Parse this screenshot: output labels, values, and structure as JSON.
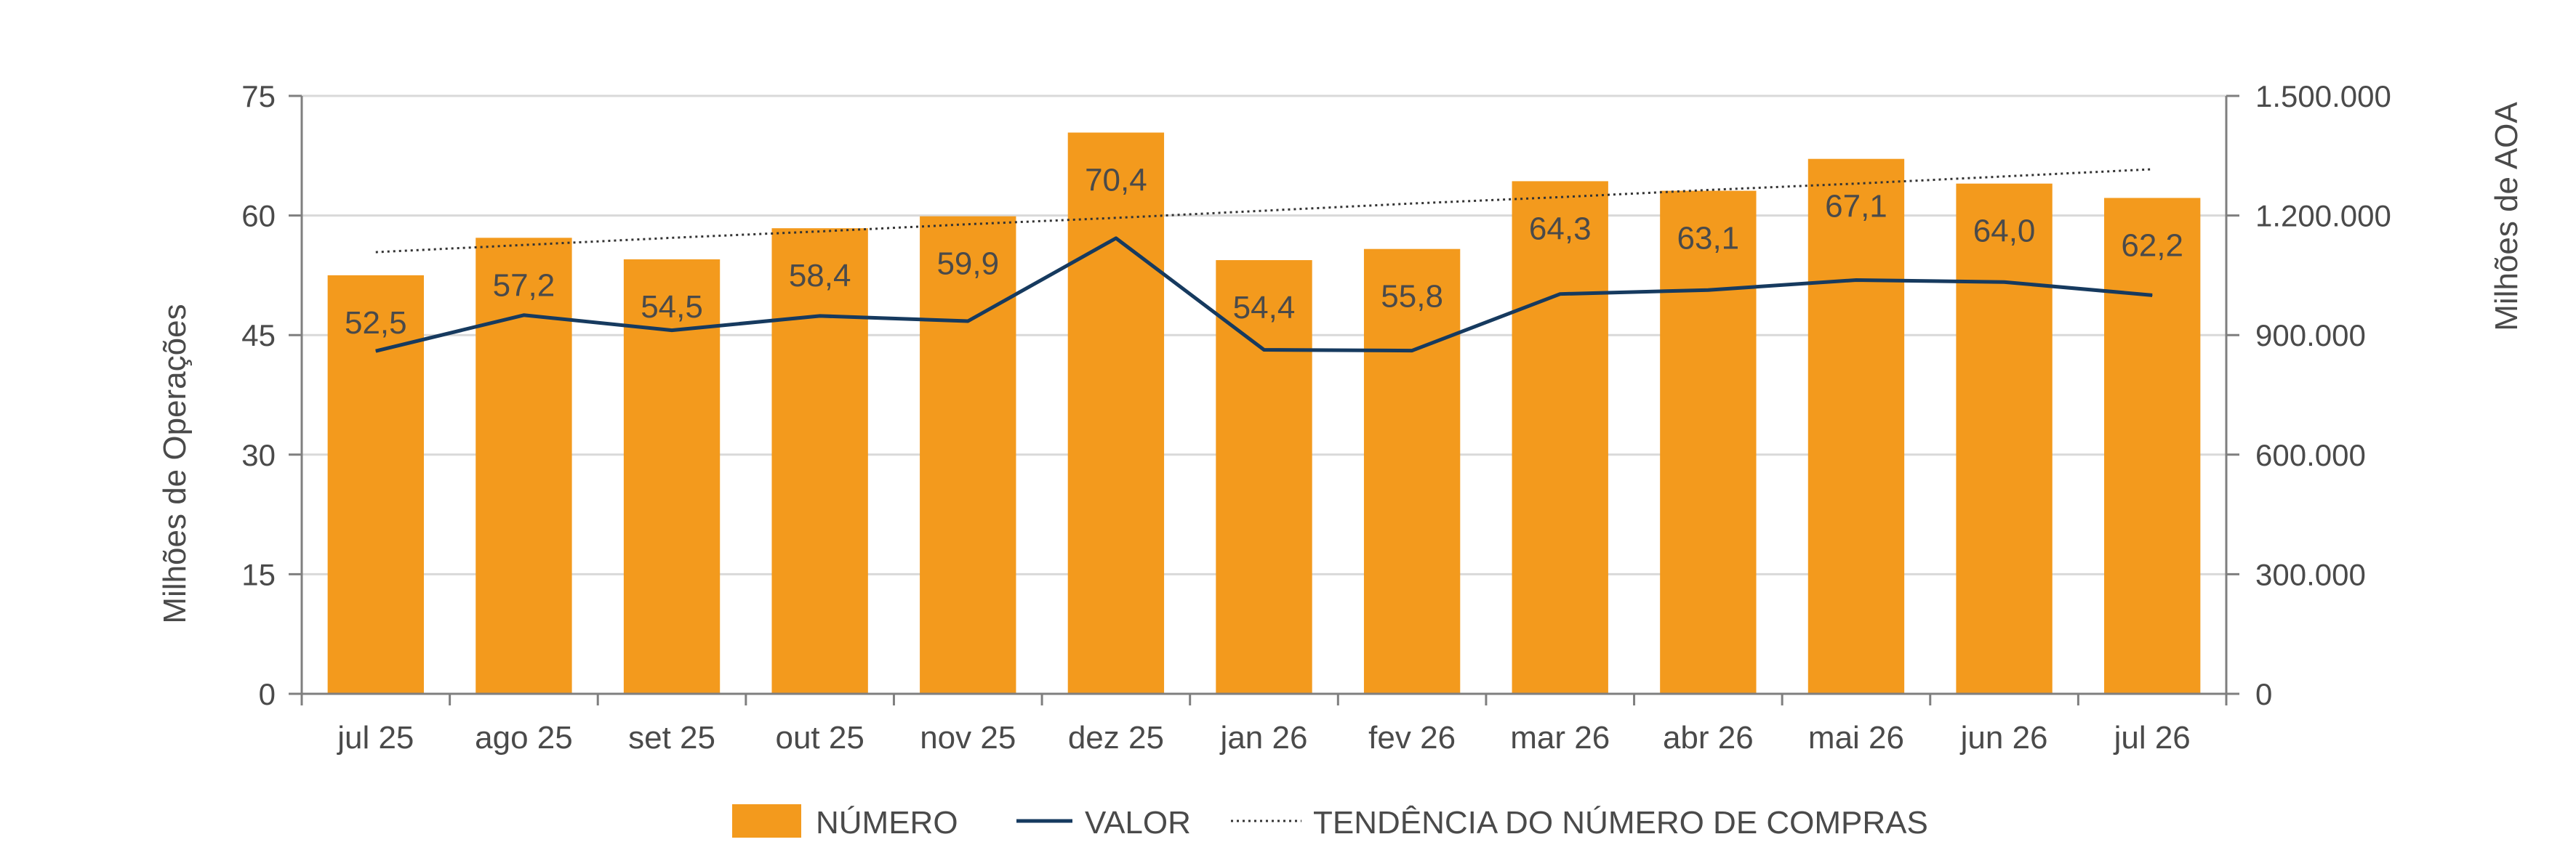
{
  "chart_data": {
    "type": "bar",
    "categories": [
      "jul 25",
      "ago 25",
      "set 25",
      "out 25",
      "nov 25",
      "dez 25",
      "jan 26",
      "fev 26",
      "mar 26",
      "abr 26",
      "mai 26",
      "jun 26",
      "jul 26"
    ],
    "series": [
      {
        "name": "NÚMERO",
        "type": "bar",
        "axis": "left",
        "values": [
          52.5,
          57.2,
          54.5,
          58.4,
          59.9,
          70.4,
          54.4,
          55.8,
          64.3,
          63.1,
          67.1,
          64.0,
          62.2
        ],
        "labels": [
          "52,5",
          "57,2",
          "54,5",
          "58,4",
          "59,9",
          "70,4",
          "54,4",
          "55,8",
          "64,3",
          "63,1",
          "67,1",
          "64,0",
          "62,2"
        ]
      },
      {
        "name": "VALOR",
        "type": "line",
        "axis": "right",
        "values": [
          860000,
          950000,
          912000,
          948000,
          935000,
          1143000,
          863000,
          861000,
          1003000,
          1013000,
          1038000,
          1033000,
          1000000
        ]
      },
      {
        "name": "TENDÊNCIA DO NÚMERO DE COMPRAS",
        "type": "trendline",
        "axis": "left",
        "values": [
          55.4,
          56.3,
          57.2,
          58.0,
          58.9,
          59.7,
          60.6,
          61.5,
          62.3,
          63.2,
          64.0,
          64.9,
          65.8
        ]
      }
    ],
    "y_left": {
      "label": "Milhões de Operações",
      "ylim": [
        0,
        75
      ],
      "ticks": [
        0,
        15,
        30,
        45,
        60,
        75
      ],
      "tick_labels": [
        "0",
        "15",
        "30",
        "45",
        "60",
        "75"
      ]
    },
    "y_right": {
      "label": "Milhões de AOA",
      "ylim": [
        0,
        1500000
      ],
      "ticks": [
        0,
        300000,
        600000,
        900000,
        1200000,
        1500000
      ],
      "tick_labels": [
        "0",
        "300.000",
        "600.000",
        "900.000",
        "1.200.000",
        "1.500.000"
      ]
    },
    "grid": true,
    "legend_position": "bottom",
    "colors": {
      "bar": "#F39A1D",
      "line": "#163A5F",
      "trend": "#333333",
      "grid": "#d9d9d9",
      "axis": "#7f7f7f",
      "text": "#4a4a4a"
    }
  }
}
